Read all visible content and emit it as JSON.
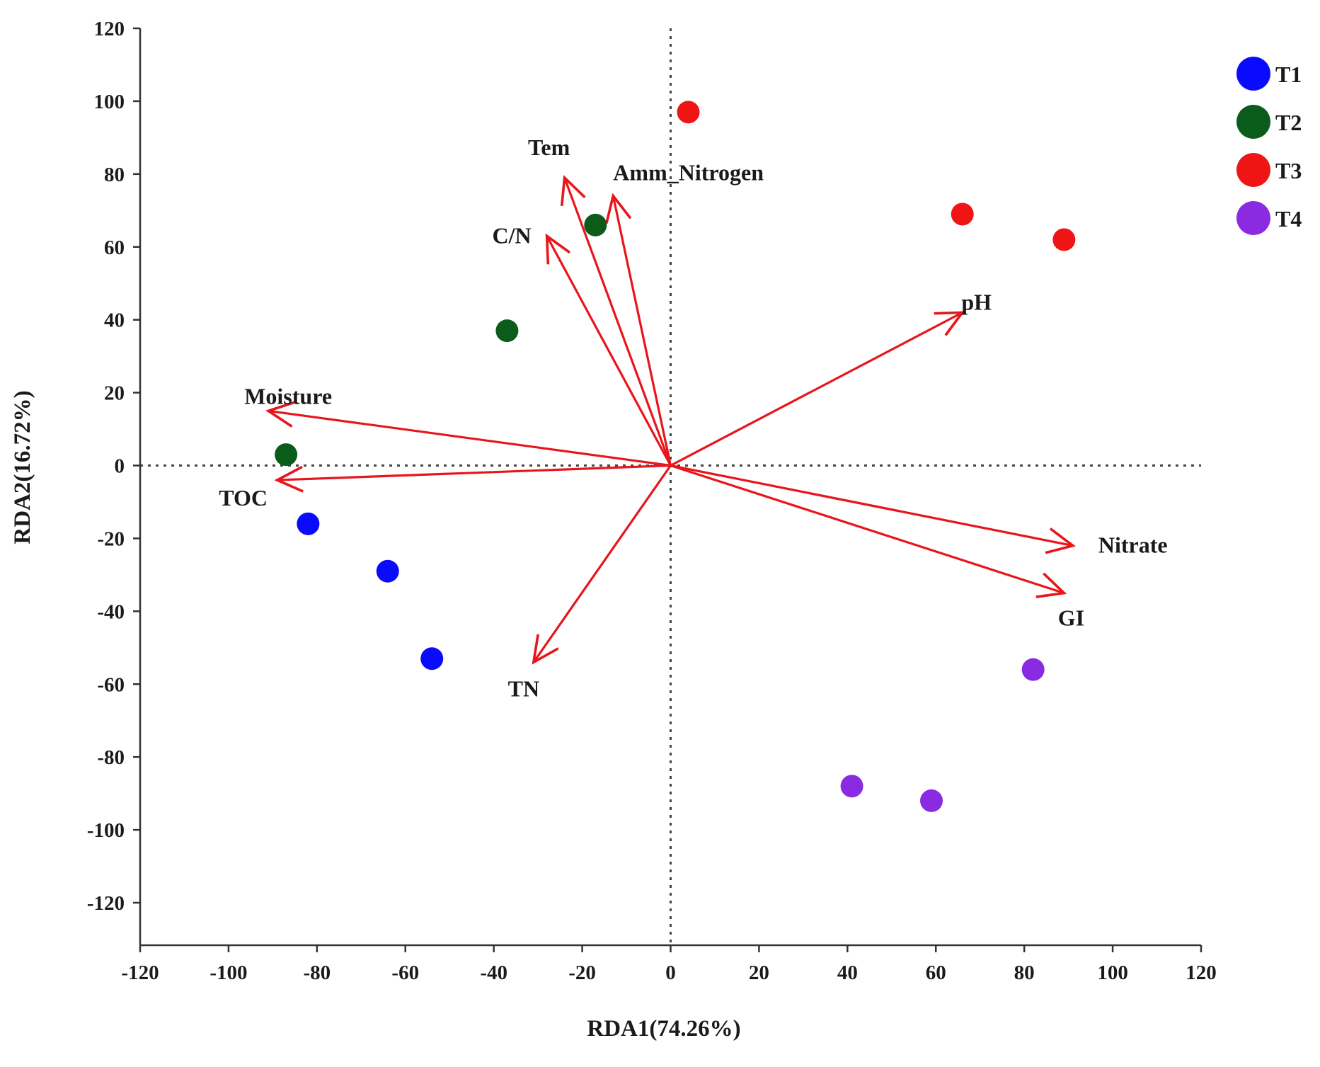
{
  "chart_data": {
    "type": "scatter",
    "subtype": "rda-biplot",
    "title": "",
    "xlabel": "RDA1(74.26%)",
    "ylabel": "RDA2(16.72%)",
    "xlim": [
      -120,
      120
    ],
    "ylim": [
      -132,
      120
    ],
    "xticks": [
      -120,
      -100,
      -80,
      -60,
      -40,
      -20,
      0,
      20,
      40,
      60,
      80,
      100,
      120
    ],
    "yticks": [
      120,
      100,
      80,
      60,
      40,
      20,
      0,
      -20,
      -40,
      -60,
      -80,
      -100,
      -120
    ],
    "grid": false,
    "reference_lines": {
      "x": 0,
      "y": 0,
      "style": "dotted"
    },
    "legend_position": "top-right",
    "series": [
      {
        "name": "T1",
        "color": "#0a0aff",
        "points": [
          [
            -82,
            -16
          ],
          [
            -64,
            -29
          ],
          [
            -54,
            -53
          ]
        ]
      },
      {
        "name": "T2",
        "color": "#0b5c1a",
        "points": [
          [
            -17,
            66
          ],
          [
            -37,
            37
          ],
          [
            -87,
            3
          ]
        ]
      },
      {
        "name": "T3",
        "color": "#f01515",
        "points": [
          [
            4,
            97
          ],
          [
            66,
            69
          ],
          [
            89,
            62
          ]
        ]
      },
      {
        "name": "T4",
        "color": "#8a2be2",
        "points": [
          [
            82,
            -56
          ],
          [
            41,
            -88
          ],
          [
            59,
            -92
          ]
        ]
      }
    ],
    "vectors": [
      {
        "label": "Tem",
        "x": -24,
        "y": 79
      },
      {
        "label": "Amm_Nitrogen",
        "x": -13,
        "y": 74
      },
      {
        "label": "C/N",
        "x": -28,
        "y": 63
      },
      {
        "label": "pH",
        "x": 66,
        "y": 42
      },
      {
        "label": "Moisture",
        "x": -91,
        "y": 15
      },
      {
        "label": "TOC",
        "x": -89,
        "y": -4
      },
      {
        "label": "Nitrate",
        "x": 91,
        "y": -22
      },
      {
        "label": "GI",
        "x": 89,
        "y": -35
      },
      {
        "label": "TN",
        "x": -31,
        "y": -54
      }
    ],
    "vector_color": "#e8151b"
  }
}
